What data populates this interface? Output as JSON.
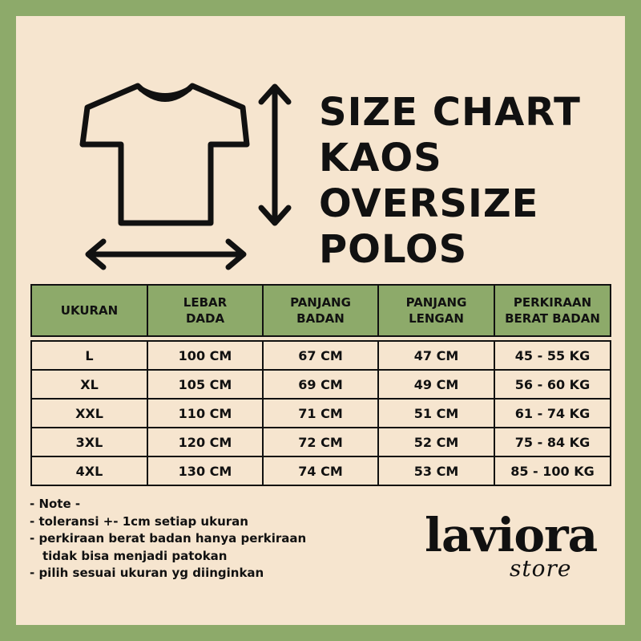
{
  "title_lines": [
    "SIZE CHART",
    "KAOS",
    "OVERSIZE",
    "POLOS"
  ],
  "table": {
    "headers": [
      [
        "UKURAN"
      ],
      [
        "LEBAR",
        "DADA"
      ],
      [
        "PANJANG",
        "BADAN"
      ],
      [
        "PANJANG",
        "LENGAN"
      ],
      [
        "PERKIRAAN",
        "BERAT BADAN"
      ]
    ],
    "rows": [
      [
        "L",
        "100 CM",
        "67 CM",
        "47 CM",
        "45 - 55 KG"
      ],
      [
        "XL",
        "105 CM",
        "69 CM",
        "49 CM",
        "56 - 60 KG"
      ],
      [
        "XXL",
        "110 CM",
        "71 CM",
        "51 CM",
        "61 - 74 KG"
      ],
      [
        "3XL",
        "120 CM",
        "72 CM",
        "52 CM",
        "75 - 84 KG"
      ],
      [
        "4XL",
        "130 CM",
        "74 CM",
        "53 CM",
        "85 - 100 KG"
      ]
    ]
  },
  "notes": {
    "heading": "- Note -",
    "items": [
      "- toleransi +- 1cm setiap ukuran",
      "- perkiraan berat badan hanya perkiraan",
      "tidak bisa menjadi patokan",
      "- pilih sesuai ukuran yg diinginkan"
    ]
  },
  "brand": {
    "name": "laviora",
    "tagline": "store"
  },
  "colors": {
    "border_green": "#8daa6a",
    "panel_cream": "#f6e5cf",
    "ink": "#111111"
  }
}
